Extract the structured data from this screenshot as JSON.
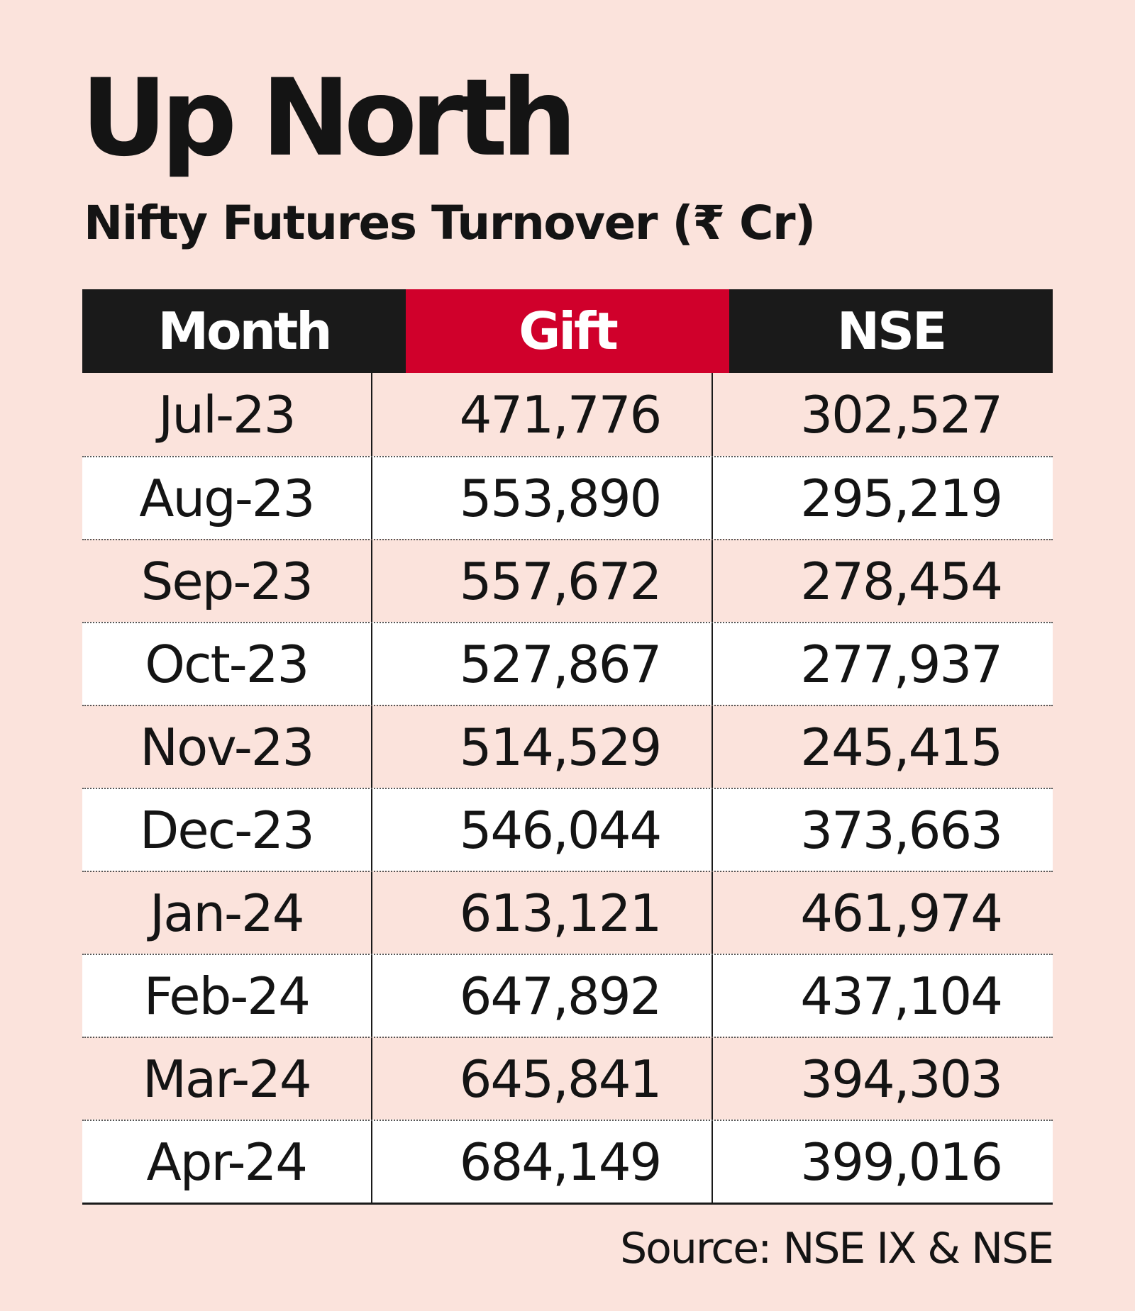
{
  "chart_data": {
    "type": "table",
    "title": "Up North",
    "subtitle": "Nifty Futures Turnover (₹ Cr)",
    "columns": [
      "Month",
      "Gift",
      "NSE"
    ],
    "colors": {
      "background": "#fbe3dc",
      "header_dark": "#1a1a1a",
      "header_gift": "#d0002b",
      "row_alt": "#ffffff"
    },
    "rows": [
      {
        "month": "Jul-23",
        "gift": "471,776",
        "nse": "302,527"
      },
      {
        "month": "Aug-23",
        "gift": "553,890",
        "nse": "295,219"
      },
      {
        "month": "Sep-23",
        "gift": "557,672",
        "nse": "278,454"
      },
      {
        "month": "Oct-23",
        "gift": "527,867",
        "nse": "277,937"
      },
      {
        "month": "Nov-23",
        "gift": "514,529",
        "nse": "245,415"
      },
      {
        "month": "Dec-23",
        "gift": "546,044",
        "nse": "373,663"
      },
      {
        "month": "Jan-24",
        "gift": "613,121",
        "nse": "461,974"
      },
      {
        "month": "Feb-24",
        "gift": "647,892",
        "nse": "437,104"
      },
      {
        "month": "Mar-24",
        "gift": "645,841",
        "nse": "394,303"
      },
      {
        "month": "Apr-24",
        "gift": "684,149",
        "nse": "399,016"
      }
    ],
    "source": "Source: NSE IX & NSE"
  }
}
